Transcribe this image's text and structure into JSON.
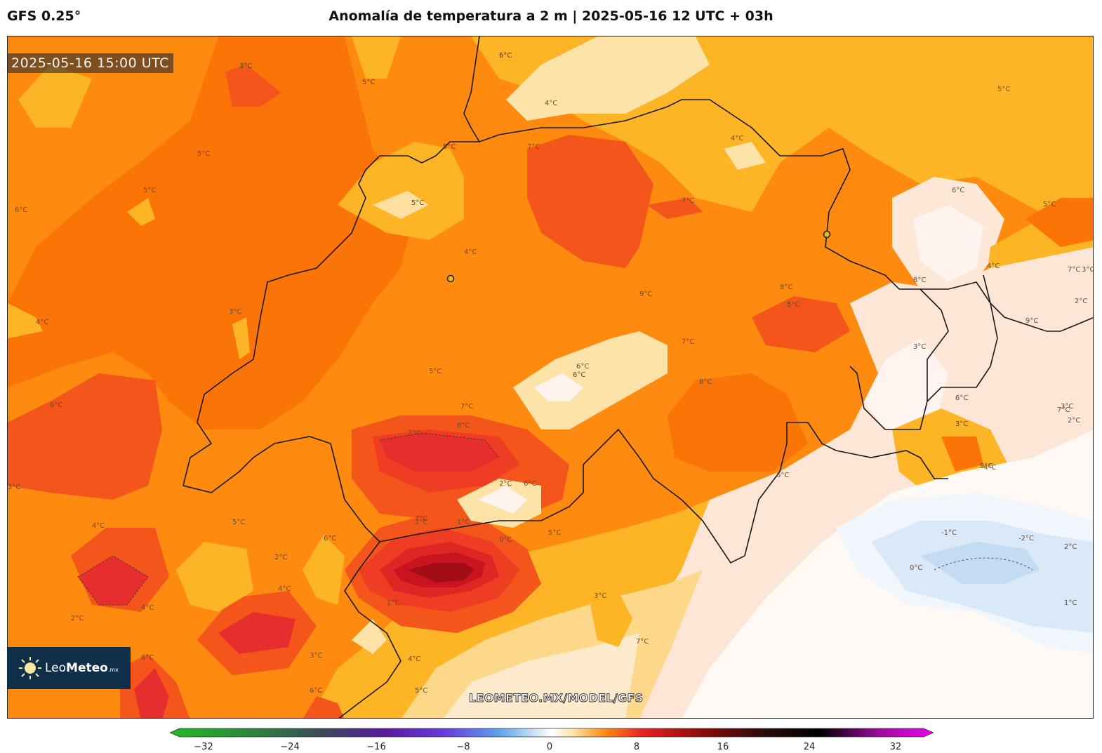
{
  "header": {
    "model": "GFS 0.25°",
    "title": "Anomalía de temperatura a 2 m | 2025-05-16 12 UTC + 03h"
  },
  "map": {
    "timestamp": "2025-05-16 15:00 UTC",
    "watermark": "LEOMETEO.MX/MODEL/GFS",
    "contour_labels": [
      "7°C",
      "5°C",
      "6°C",
      "4°C",
      "5°C",
      "5°C",
      "6°C",
      "5°C",
      "5°C",
      "5°C",
      "4°C",
      "7°C",
      "7°C",
      "4°C",
      "6°C",
      "5°C",
      "3°C",
      "4°C",
      "5°C",
      "6°C",
      "7°C",
      "8°C",
      "9°C",
      "5°C",
      "3°C",
      "4°C",
      "9°C",
      "8°C",
      "7°C",
      "3°C",
      "8°C",
      "6°C",
      "7°C",
      "8°C",
      "7°C",
      "6°C",
      "3°C",
      "4°C",
      "3°C",
      "2°C",
      "6°C",
      "7°C",
      "2°C",
      "6°C",
      "5°C",
      "6°C",
      "5°C",
      "4°C",
      "2°C",
      "1°C",
      "0°C",
      "2°C",
      "3°C",
      "4°C",
      "4°C",
      "2°C",
      "3°C",
      "-1°C",
      "-2°C",
      "0°C",
      "2°C",
      "1°C",
      "1°C",
      "4°C",
      "3°C",
      "6°C",
      "7°C",
      "6°C",
      "5°C",
      "9°C",
      "6°C",
      "7°C",
      "2°C",
      "3°C",
      "5°C",
      "5°C"
    ],
    "stations": [
      "station-1",
      "station-2"
    ]
  },
  "logo": {
    "brand_light": "Leo",
    "brand_bold": "Meteo",
    "brand_suffix": ".mx"
  },
  "colorbar": {
    "ticks": [
      "−32",
      "−24",
      "−16",
      "−8",
      "0",
      "8",
      "16",
      "24",
      "32"
    ],
    "colors": {
      "cold_end": "#22bb22",
      "neutral": "#ffffff",
      "warm_mid": "#ff7700",
      "hot_end": "#ee00ee"
    }
  }
}
